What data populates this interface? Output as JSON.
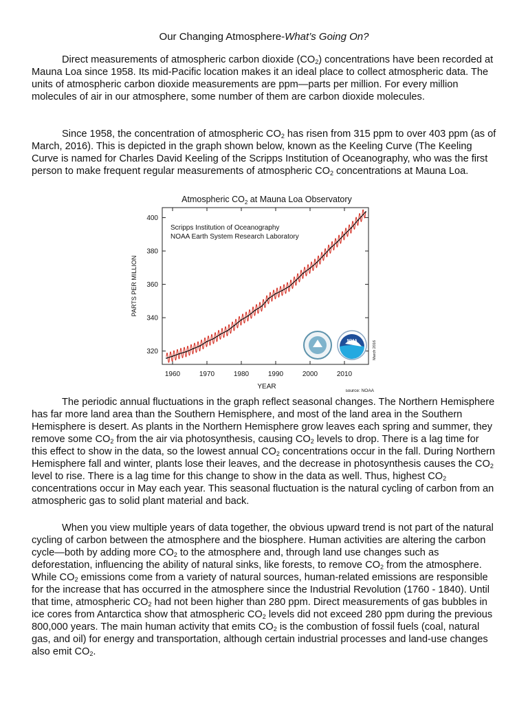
{
  "document": {
    "title_main": "Our Changing Atmosphere-",
    "title_em": "What’s Going On?",
    "p1": [
      {
        "t": "Direct measurements of atmospheric carbon dioxide (CO"
      },
      {
        "s": "2"
      },
      {
        "t": ") concentrations have been recorded at Mauna Loa since 1958. Its mid-Pacific location makes it an ideal place to collect atmospheric data. The units of atmospheric carbon dioxide measurements are ppm—parts per million. For every million molecules of air in our atmosphere, some number of them are carbon dioxide molecules."
      }
    ],
    "p2": [
      {
        "t": "Since 1958, the concentration of atmospheric CO"
      },
      {
        "s": "2"
      },
      {
        "t": " has risen from 315 ppm to over 403 ppm (as of March, 2016). This is depicted in the graph shown below, known as the Keeling Curve (The Keeling Curve is named for Charles David Keeling of the Scripps Institution of Oceanography, who was the first person to make frequent regular measurements of atmospheric CO"
      },
      {
        "s": "2"
      },
      {
        "t": " concentrations at Mauna Loa."
      }
    ],
    "p3": [
      {
        "t": "The periodic annual fluctuations in the graph reflect seasonal changes. The Northern Hemisphere has far more land area than the Southern Hemisphere, and most of the land area in the Southern Hemisphere is desert. As plants in the Northern Hemisphere grow leaves each spring and summer, they remove some CO"
      },
      {
        "s": "2"
      },
      {
        "t": " from the air via photosynthesis, causing CO"
      },
      {
        "s": "2"
      },
      {
        "t": " levels to drop. There is a lag time for this effect to show in the data, so the lowest annual CO"
      },
      {
        "s": "2"
      },
      {
        "t": " concentrations occur in the fall. During Northern Hemisphere fall and winter, plants lose their leaves, and the decrease in photosynthesis causes the CO"
      },
      {
        "s": "2"
      },
      {
        "t": " level to rise. There is a lag time for this change to show in the data as well. Thus, highest CO"
      },
      {
        "s": "2"
      },
      {
        "t": " concentrations occur in May each year. This seasonal fluctuation is the natural cycling of carbon from an atmospheric gas to solid plant material and back."
      }
    ],
    "p4": [
      {
        "t": "When you view multiple years of data together, the obvious upward trend is not part of the natural cycling of carbon between the atmosphere and the biosphere. Human activities are altering the carbon cycle—both by adding more CO"
      },
      {
        "s": "2"
      },
      {
        "t": " to the atmosphere and, through land use changes such as deforestation, influencing the ability of natural sinks, like forests, to remove CO"
      },
      {
        "s": "2"
      },
      {
        "t": " from the atmosphere. While CO"
      },
      {
        "s": "2"
      },
      {
        "t": " emissions come from a variety of natural sources, human-related emissions are responsible for the increase that has occurred in the atmosphere since the Industrial Revolution (1760 - 1840). Until that time, atmospheric CO"
      },
      {
        "s": "2"
      },
      {
        "t": " had not been higher than 280 ppm. Direct measurements of gas bubbles in ice cores from Antarctica show that atmospheric CO"
      },
      {
        "s": "2"
      },
      {
        "t": " levels did not exceed 280 ppm during the previous 800,000 years. The main human activity that emits CO"
      },
      {
        "s": "2"
      },
      {
        "t": " is the combustion of fossil fuels (coal, natural gas, and oil) for energy and transportation, although certain industrial processes and land-use changes also emit CO"
      },
      {
        "s": "2"
      },
      {
        "t": "."
      }
    ]
  },
  "chart_data": {
    "type": "line",
    "title_main": "Atmospheric CO",
    "title_sub": "2",
    "title_rest": " at Mauna Loa Observatory",
    "annotation_1": "Scripps Institution of Oceanography",
    "annotation_2": "NOAA Earth System Research Laboratory",
    "xlabel": "YEAR",
    "ylabel": "PARTS PER MILLION",
    "source": "source: NOAA",
    "date_label": "March 2016",
    "logo_text": "NOAA",
    "xlim": [
      1957,
      2017
    ],
    "ylim": [
      312,
      406
    ],
    "x_ticks": [
      1960,
      1970,
      1980,
      1990,
      2000,
      2010
    ],
    "y_ticks": [
      320,
      340,
      360,
      380,
      400
    ],
    "grid": false,
    "series": [
      {
        "color": "#d42a1e",
        "points": [
          {
            "x": 1958.2,
            "y": 315.7
          },
          {
            "x": 1960,
            "y": 316.9
          },
          {
            "x": 1962,
            "y": 318.4
          },
          {
            "x": 1964,
            "y": 319.6
          },
          {
            "x": 1966,
            "y": 321.4
          },
          {
            "x": 1968,
            "y": 323.1
          },
          {
            "x": 1970,
            "y": 325.7
          },
          {
            "x": 1972,
            "y": 327.5
          },
          {
            "x": 1974,
            "y": 330.2
          },
          {
            "x": 1976,
            "y": 332.2
          },
          {
            "x": 1978,
            "y": 335.4
          },
          {
            "x": 1980,
            "y": 338.7
          },
          {
            "x": 1982,
            "y": 341.1
          },
          {
            "x": 1984,
            "y": 344.4
          },
          {
            "x": 1986,
            "y": 347.0
          },
          {
            "x": 1988,
            "y": 351.6
          },
          {
            "x": 1990,
            "y": 354.4
          },
          {
            "x": 1992,
            "y": 356.4
          },
          {
            "x": 1994,
            "y": 358.8
          },
          {
            "x": 1996,
            "y": 362.6
          },
          {
            "x": 1998,
            "y": 366.7
          },
          {
            "x": 2000,
            "y": 369.7
          },
          {
            "x": 2002,
            "y": 373.2
          },
          {
            "x": 2004,
            "y": 377.5
          },
          {
            "x": 2006,
            "y": 381.9
          },
          {
            "x": 2008,
            "y": 385.6
          },
          {
            "x": 2010,
            "y": 389.9
          },
          {
            "x": 2012,
            "y": 393.9
          },
          {
            "x": 2014,
            "y": 398.6
          },
          {
            "x": 2016.2,
            "y": 403.5
          }
        ],
        "seasonal_amplitude": 3
      }
    ]
  }
}
